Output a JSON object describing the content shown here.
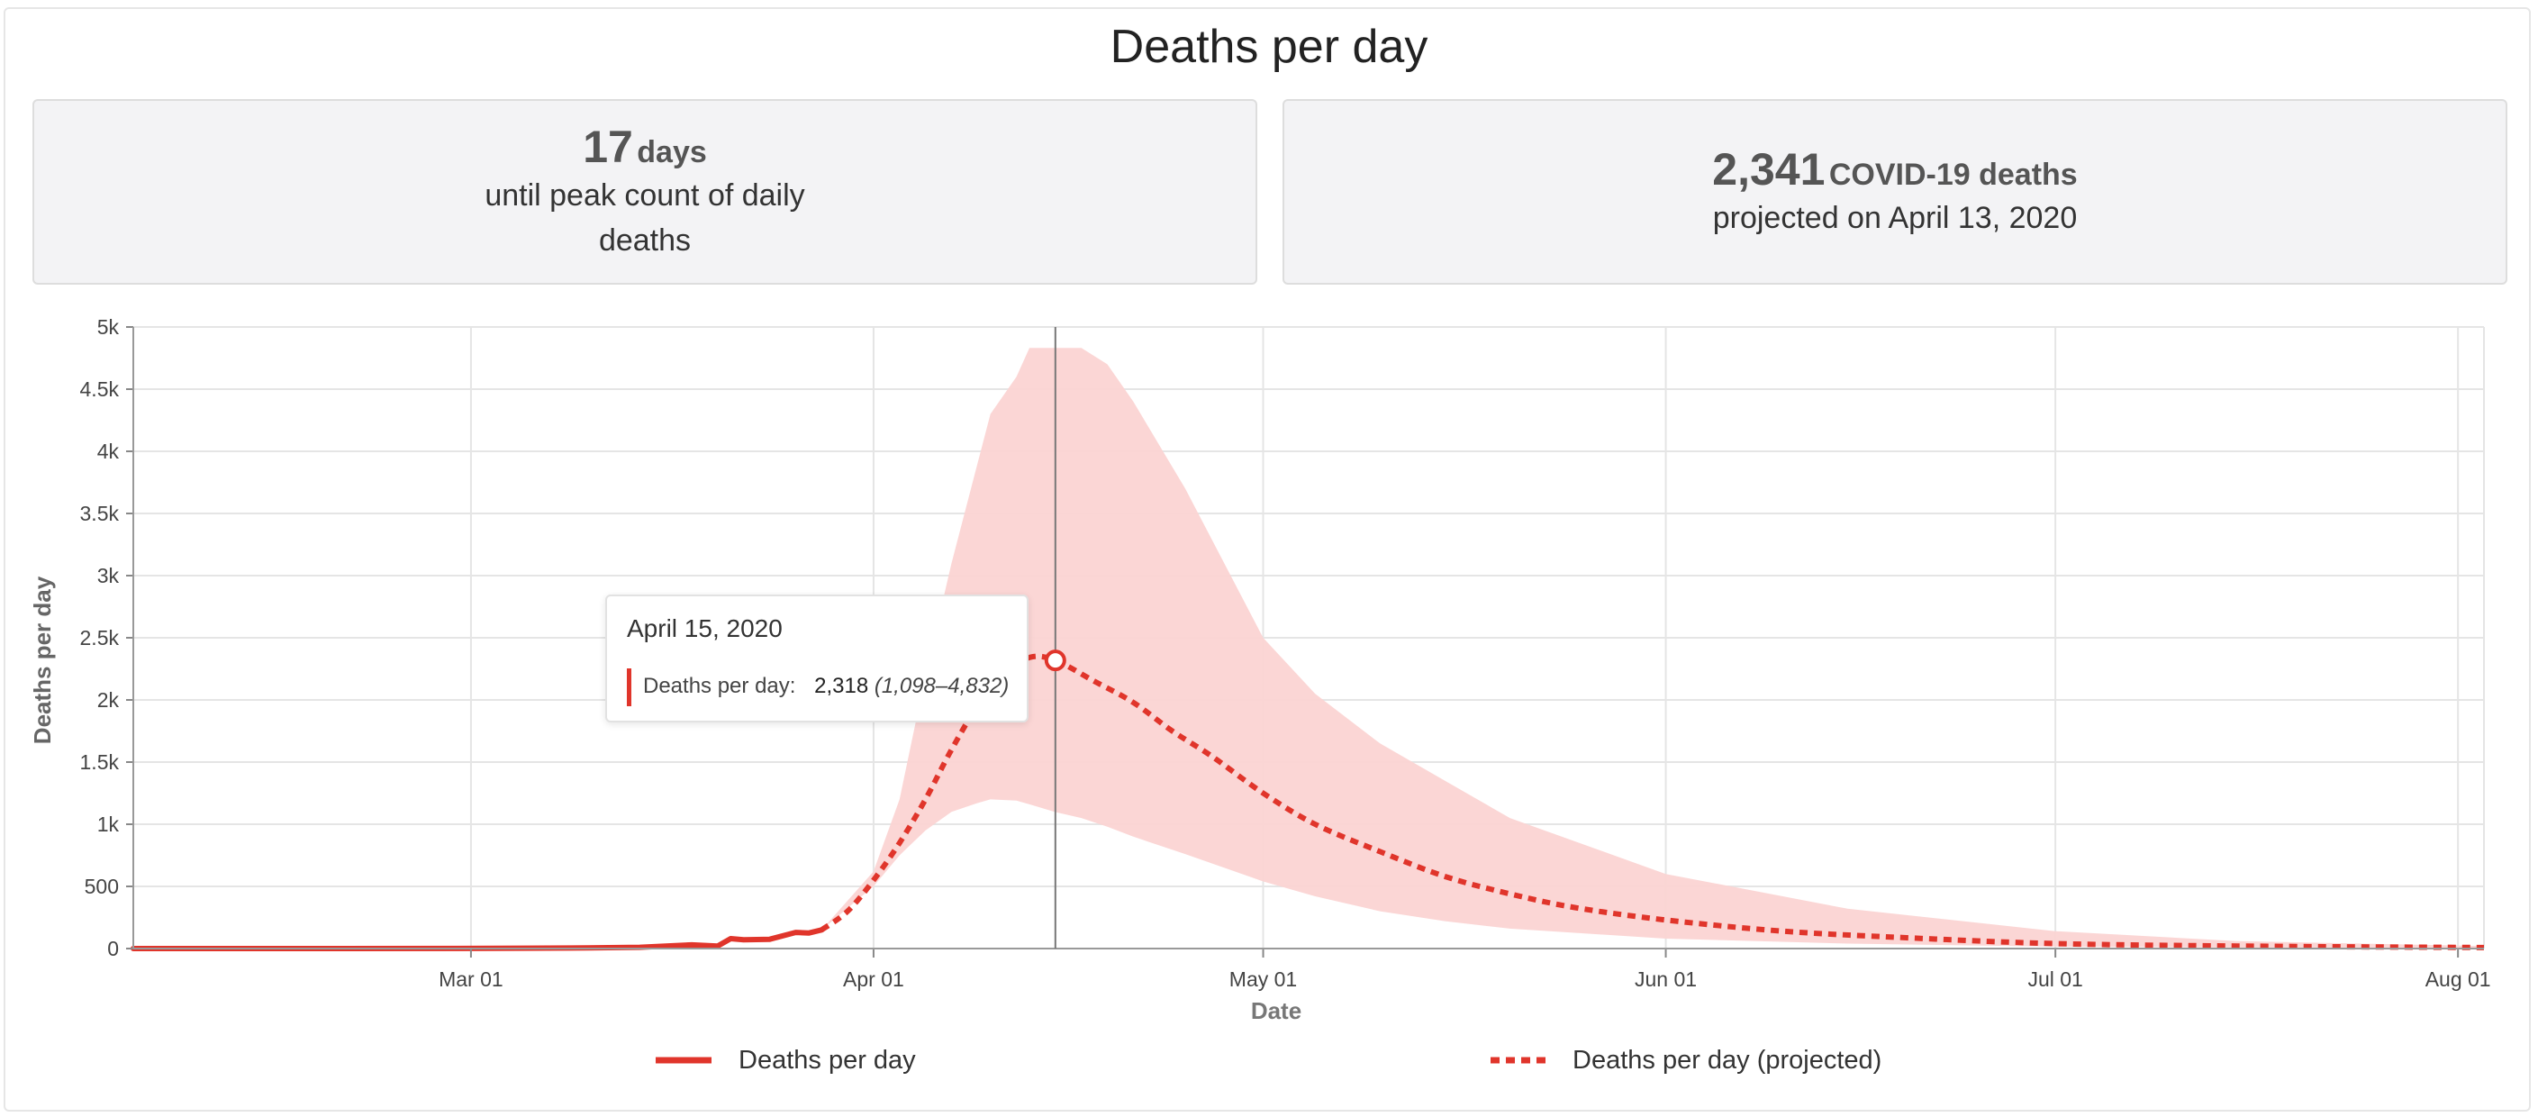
{
  "page": {
    "title": "Deaths per day"
  },
  "cards": {
    "peak": {
      "number": "17",
      "unit": "days",
      "text": "until peak count of daily deaths"
    },
    "projection": {
      "number": "2,341",
      "unit": "COVID-19 deaths",
      "text": "projected on April 13, 2020"
    }
  },
  "tooltip": {
    "date": "April 15, 2020",
    "label": "Deaths per day:",
    "value": "2,318",
    "range": "(1,098–4,832)"
  },
  "colors": {
    "series": "#e0352b",
    "band": "#fbd4d3",
    "grid": "#e5e5e5",
    "crosshair": "#777777"
  },
  "chart_data": {
    "type": "line",
    "xlabel": "Date",
    "ylabel": "Deaths per day",
    "x_range": [
      "2020-02-04",
      "2020-08-03"
    ],
    "ylim": [
      0,
      5000
    ],
    "y_ticks": [
      0,
      500,
      1000,
      1500,
      2000,
      2500,
      3000,
      3500,
      4000,
      4500,
      5000
    ],
    "y_tick_labels": [
      "0",
      "500",
      "1k",
      "1.5k",
      "2k",
      "2.5k",
      "3k",
      "3.5k",
      "4k",
      "4.5k",
      "5k"
    ],
    "x_ticks": [
      "2020-03-01",
      "2020-04-01",
      "2020-05-01",
      "2020-06-01",
      "2020-07-01",
      "2020-08-01"
    ],
    "x_tick_labels": [
      "Mar 01",
      "Apr 01",
      "May 01",
      "Jun 01",
      "Jul 01",
      "Aug 01"
    ],
    "grid": true,
    "legend_position": "bottom",
    "series": [
      {
        "name": "Deaths per day",
        "style": "solid",
        "points": [
          [
            "2020-02-04",
            0
          ],
          [
            "2020-02-15",
            0
          ],
          [
            "2020-02-29",
            1
          ],
          [
            "2020-03-05",
            3
          ],
          [
            "2020-03-10",
            5
          ],
          [
            "2020-03-14",
            10
          ],
          [
            "2020-03-16",
            20
          ],
          [
            "2020-03-18",
            30
          ],
          [
            "2020-03-20",
            20
          ],
          [
            "2020-03-21",
            80
          ],
          [
            "2020-03-22",
            70
          ],
          [
            "2020-03-24",
            75
          ],
          [
            "2020-03-26",
            130
          ],
          [
            "2020-03-27",
            125
          ],
          [
            "2020-03-28",
            150
          ]
        ]
      },
      {
        "name": "Deaths per day (projected)",
        "style": "dashed",
        "points": [
          [
            "2020-03-28",
            150
          ],
          [
            "2020-03-30",
            300
          ],
          [
            "2020-04-01",
            550
          ],
          [
            "2020-04-03",
            850
          ],
          [
            "2020-04-05",
            1200
          ],
          [
            "2020-04-07",
            1600
          ],
          [
            "2020-04-09",
            1950
          ],
          [
            "2020-04-11",
            2200
          ],
          [
            "2020-04-13",
            2341
          ],
          [
            "2020-04-15",
            2318
          ],
          [
            "2020-04-18",
            2150
          ],
          [
            "2020-04-21",
            1980
          ],
          [
            "2020-04-24",
            1750
          ],
          [
            "2020-04-27",
            1550
          ],
          [
            "2020-05-01",
            1250
          ],
          [
            "2020-05-05",
            1000
          ],
          [
            "2020-05-10",
            780
          ],
          [
            "2020-05-15",
            580
          ],
          [
            "2020-05-20",
            440
          ],
          [
            "2020-05-25",
            330
          ],
          [
            "2020-06-01",
            230
          ],
          [
            "2020-06-10",
            140
          ],
          [
            "2020-06-20",
            85
          ],
          [
            "2020-07-01",
            40
          ],
          [
            "2020-07-15",
            20
          ],
          [
            "2020-08-03",
            8
          ]
        ]
      }
    ],
    "uncertainty_band": {
      "points": [
        [
          "2020-03-28",
          150,
          150
        ],
        [
          "2020-04-01",
          500,
          620
        ],
        [
          "2020-04-03",
          750,
          1200
        ],
        [
          "2020-04-05",
          950,
          2200
        ],
        [
          "2020-04-07",
          1100,
          3100
        ],
        [
          "2020-04-09",
          1170,
          3900
        ],
        [
          "2020-04-10",
          1200,
          4300
        ],
        [
          "2020-04-12",
          1190,
          4600
        ],
        [
          "2020-04-13",
          1160,
          4832
        ],
        [
          "2020-04-15",
          1098,
          4832
        ],
        [
          "2020-04-17",
          1050,
          4832
        ],
        [
          "2020-04-19",
          980,
          4700
        ],
        [
          "2020-04-21",
          900,
          4400
        ],
        [
          "2020-04-25",
          760,
          3700
        ],
        [
          "2020-05-01",
          540,
          2500
        ],
        [
          "2020-05-05",
          420,
          2050
        ],
        [
          "2020-05-10",
          300,
          1650
        ],
        [
          "2020-05-15",
          220,
          1350
        ],
        [
          "2020-05-20",
          160,
          1050
        ],
        [
          "2020-06-01",
          80,
          600
        ],
        [
          "2020-06-15",
          40,
          320
        ],
        [
          "2020-07-01",
          15,
          140
        ],
        [
          "2020-07-15",
          7,
          60
        ],
        [
          "2020-08-03",
          2,
          20
        ]
      ]
    },
    "highlight": {
      "date": "2020-04-15",
      "value": 2318
    }
  }
}
